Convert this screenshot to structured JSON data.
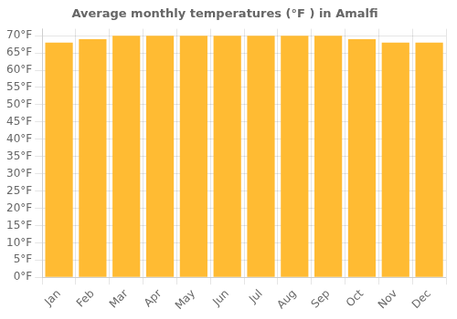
{
  "chart_data": {
    "type": "bar",
    "title": "Average monthly temperatures (°F ) in Amalfi",
    "categories": [
      "Jan",
      "Feb",
      "Mar",
      "Apr",
      "May",
      "Jun",
      "Jul",
      "Aug",
      "Sep",
      "Oct",
      "Nov",
      "Dec"
    ],
    "values": [
      68,
      69,
      70,
      70,
      70,
      70,
      70,
      70,
      70,
      69,
      68,
      68
    ],
    "color": "#FFBB33",
    "ylim": [
      0,
      72
    ],
    "yticks": [
      {
        "value": 0,
        "label": "0°F"
      },
      {
        "value": 5,
        "label": "5°F"
      },
      {
        "value": 10,
        "label": "10°F"
      },
      {
        "value": 15,
        "label": "15°F"
      },
      {
        "value": 20,
        "label": "20°F"
      },
      {
        "value": 25,
        "label": "25°F"
      },
      {
        "value": 30,
        "label": "30°F"
      },
      {
        "value": 35,
        "label": "35°F"
      },
      {
        "value": 40,
        "label": "40°F"
      },
      {
        "value": 45,
        "label": "45°F"
      },
      {
        "value": 50,
        "label": "50°F"
      },
      {
        "value": 55,
        "label": "55°F"
      },
      {
        "value": 60,
        "label": "60°F"
      },
      {
        "value": 65,
        "label": "65°F"
      },
      {
        "value": 70,
        "label": "70°F"
      }
    ],
    "grid": true
  }
}
